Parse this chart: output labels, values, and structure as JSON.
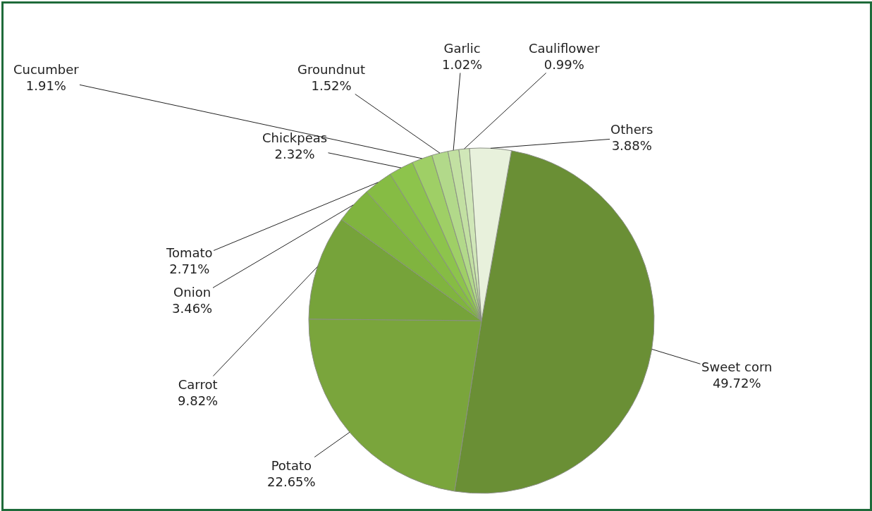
{
  "chart_data": {
    "type": "pie",
    "categories": [
      "Sweet corn",
      "Potato",
      "Carrot",
      "Onion",
      "Tomato",
      "Chickpeas",
      "Cucumber",
      "Groundnut",
      "Garlic",
      "Cauliflower",
      "Others"
    ],
    "values": [
      49.72,
      22.65,
      9.82,
      3.46,
      2.71,
      2.32,
      1.91,
      1.52,
      1.02,
      0.99,
      3.88
    ],
    "value_labels": [
      "49.72%",
      "22.65%",
      "9.82%",
      "3.46%",
      "2.71%",
      "2.32%",
      "1.91%",
      "1.52%",
      "1.02%",
      "0.99%",
      "3.88%"
    ],
    "colors": [
      "#6a8f35",
      "#7aa53c",
      "#76a33a",
      "#80b43f",
      "#86bc44",
      "#8dc44c",
      "#9fcf66",
      "#b2d98a",
      "#c2e0a2",
      "#d0e7b8",
      "#e8f1dc"
    ],
    "legend": false
  }
}
